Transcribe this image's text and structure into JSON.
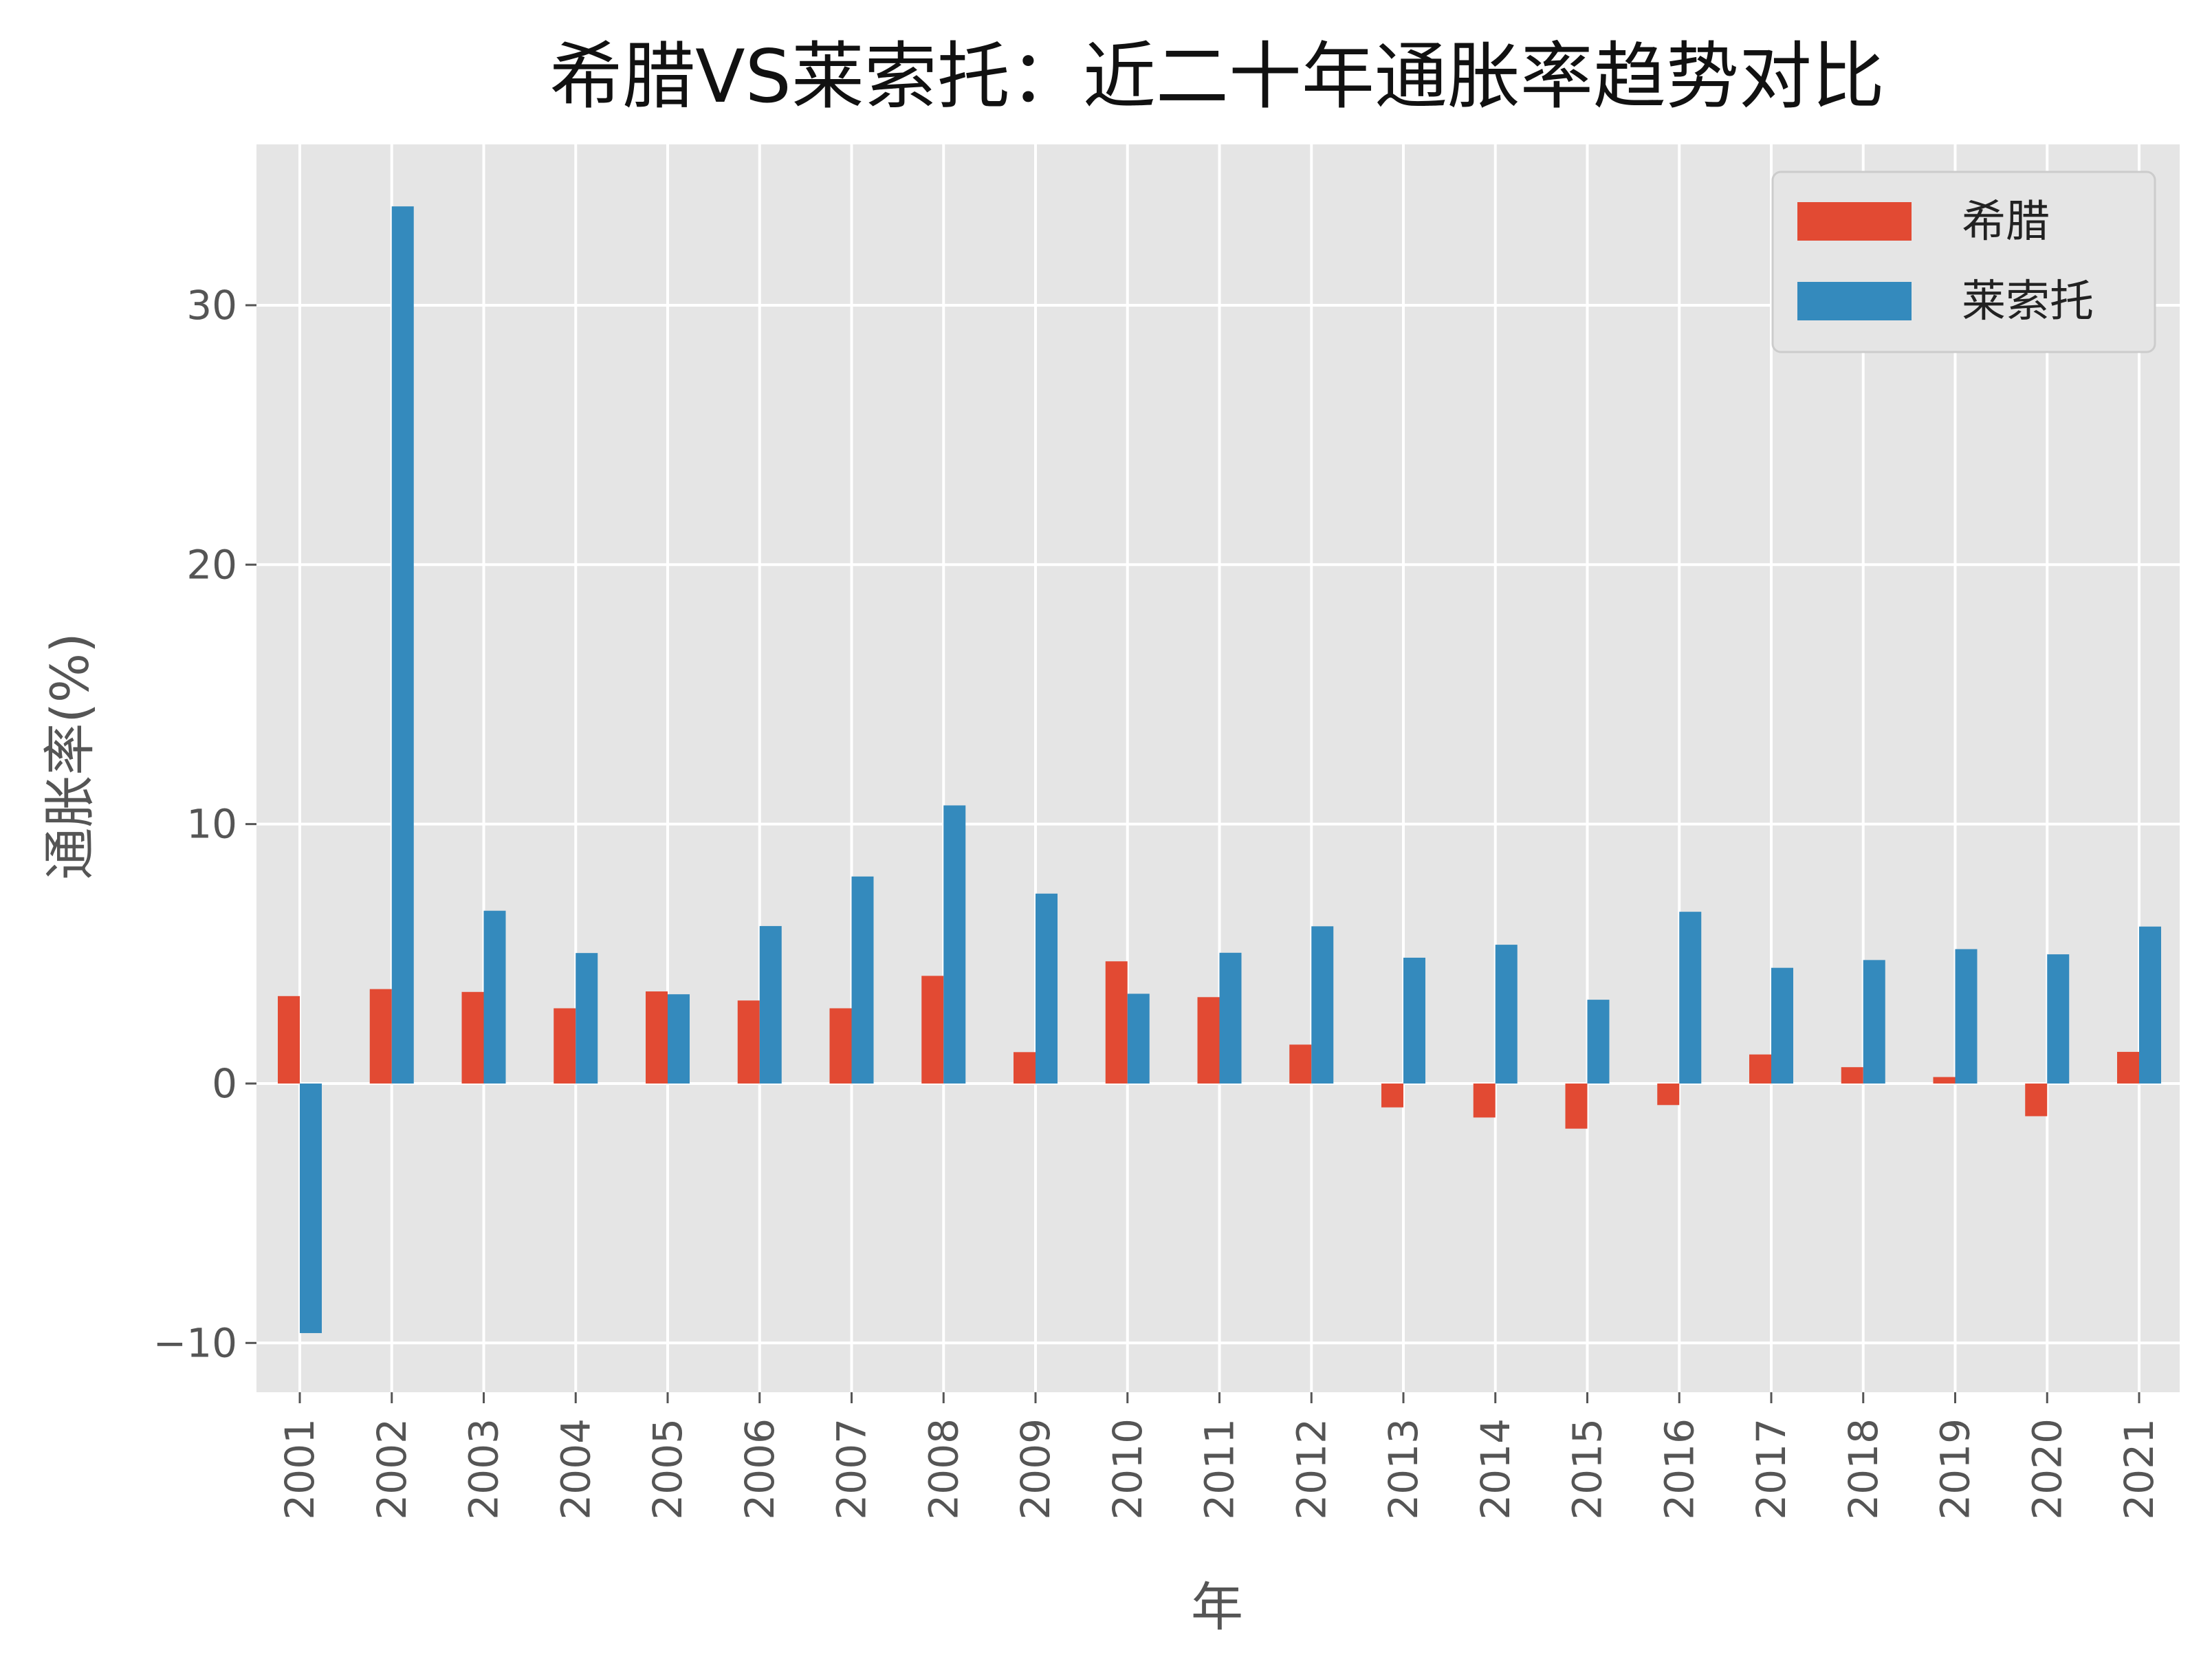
{
  "chart_data": {
    "type": "bar",
    "title": "希腊VS莱索托：近二十年通胀率趋势对比",
    "xlabel": "年",
    "ylabel": "通胀率(%)",
    "ylim": [
      -11.9,
      36.2
    ],
    "yticks": [
      -10,
      0,
      10,
      20,
      30
    ],
    "ytick_labels": [
      "−10",
      "0",
      "10",
      "20",
      "30"
    ],
    "categories": [
      "2001",
      "2002",
      "2003",
      "2004",
      "2005",
      "2006",
      "2007",
      "2008",
      "2009",
      "2010",
      "2011",
      "2012",
      "2013",
      "2014",
      "2015",
      "2016",
      "2017",
      "2018",
      "2019",
      "2020",
      "2021"
    ],
    "series": [
      {
        "name": "希腊",
        "color": "#E24A33",
        "values": [
          3.37,
          3.64,
          3.53,
          2.9,
          3.55,
          3.2,
          2.9,
          4.15,
          1.21,
          4.71,
          3.33,
          1.5,
          -0.92,
          -1.31,
          -1.74,
          -0.83,
          1.12,
          0.63,
          0.25,
          -1.26,
          1.22
        ]
      },
      {
        "name": "莱索托",
        "color": "#348ABD",
        "values": [
          -9.62,
          33.81,
          6.66,
          5.03,
          3.44,
          6.07,
          7.98,
          10.72,
          7.32,
          3.46,
          5.04,
          6.06,
          4.85,
          5.35,
          3.23,
          6.62,
          4.46,
          4.76,
          5.18,
          4.98,
          6.05
        ]
      }
    ],
    "grid": true,
    "legend_position": "top-right",
    "background": "#E5E5E5",
    "grid_color": "#FFFFFF"
  }
}
